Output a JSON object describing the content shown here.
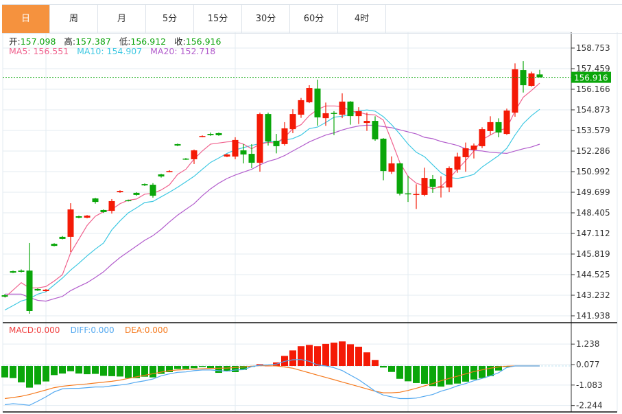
{
  "tabs": [
    {
      "label": "日",
      "active": true
    },
    {
      "label": "周",
      "active": false
    },
    {
      "label": "月",
      "active": false
    },
    {
      "label": "5分",
      "active": false
    },
    {
      "label": "15分",
      "active": false
    },
    {
      "label": "30分",
      "active": false
    },
    {
      "label": "60分",
      "active": false
    },
    {
      "label": "4时",
      "active": false
    }
  ],
  "ohlc_info": {
    "open_label": "开:",
    "open": "157.098",
    "high_label": "高:",
    "high": "157.387",
    "low_label": "低:",
    "low": "156.912",
    "close_label": "收:",
    "close": "156.916"
  },
  "ma_info": {
    "ma5": "MA5: 156.551",
    "ma10": "MA10: 154.907",
    "ma20": "MA20: 152.718"
  },
  "macd_info": {
    "macd": "MACD:0.000",
    "diff": "DIFF:0.000",
    "dea": "DEA:0.000"
  },
  "price_axis": {
    "ticks": [
      "158.753",
      "157.459",
      "156.166",
      "154.873",
      "153.579",
      "152.286",
      "150.992",
      "149.699",
      "148.405",
      "147.112",
      "145.819",
      "144.525",
      "143.232",
      "141.938"
    ],
    "current_price": "156.916"
  },
  "macd_axis": {
    "ticks": [
      "1.238",
      "0.077",
      "-1.083",
      "-2.244"
    ]
  },
  "colors": {
    "up": "#f41a06",
    "down": "#0aa60a",
    "ma5": "#f0628e",
    "ma10": "#3ec8e2",
    "ma20": "#b25ccc",
    "diff": "#52a8f0",
    "dea": "#f57a1e",
    "active_tab": "#f5923e",
    "grid": "#e3ebf2"
  },
  "chart_data": {
    "type": "candlestick",
    "ylim": [
      141.938,
      158.753
    ],
    "candles": [
      [
        143.23,
        143.3,
        143.1,
        143.14
      ],
      [
        144.74,
        144.78,
        144.62,
        144.65
      ],
      [
        144.78,
        144.85,
        144.66,
        144.7
      ],
      [
        144.78,
        146.51,
        142.07,
        142.24
      ],
      [
        143.62,
        143.66,
        143.5,
        143.53
      ],
      [
        143.49,
        143.62,
        143.46,
        143.58
      ],
      [
        146.46,
        146.5,
        146.3,
        146.33
      ],
      [
        146.9,
        146.95,
        146.74,
        146.77
      ],
      [
        146.9,
        149.01,
        145.95,
        148.62
      ],
      [
        148.19,
        148.23,
        148.06,
        148.1
      ],
      [
        148.1,
        148.27,
        148.06,
        148.23
      ],
      [
        149.31,
        149.35,
        148.98,
        149.09
      ],
      [
        148.58,
        148.62,
        148.4,
        148.45
      ],
      [
        148.53,
        149.27,
        148.36,
        149.14
      ],
      [
        149.7,
        149.82,
        149.66,
        149.78
      ],
      [
        149.2,
        149.24,
        149.12,
        149.16
      ],
      [
        149.66,
        149.7,
        149.48,
        149.53
      ],
      [
        150.21,
        150.25,
        150.09,
        150.13
      ],
      [
        150.17,
        150.27,
        149.36,
        149.48
      ],
      [
        150.82,
        150.86,
        150.62,
        150.69
      ],
      [
        150.99,
        151.08,
        150.95,
        151.03
      ],
      [
        152.72,
        152.76,
        152.59,
        152.63
      ],
      [
        151.81,
        151.85,
        151.73,
        151.77
      ],
      [
        151.77,
        152.38,
        151.47,
        152.33
      ],
      [
        153.19,
        153.27,
        153.15,
        153.23
      ],
      [
        153.36,
        153.45,
        153.24,
        153.28
      ],
      [
        153.41,
        153.45,
        153.24,
        153.28
      ],
      [
        151.94,
        152.11,
        151.9,
        152.07
      ],
      [
        151.94,
        153.15,
        151.77,
        152.98
      ],
      [
        152.33,
        152.72,
        151.51,
        152.07
      ],
      [
        152.11,
        152.72,
        151.21,
        151.55
      ],
      [
        151.55,
        154.7,
        150.99,
        154.61
      ],
      [
        154.61,
        154.7,
        152.63,
        152.89
      ],
      [
        152.93,
        153.36,
        152.14,
        152.59
      ],
      [
        152.72,
        154.1,
        152.63,
        153.71
      ],
      [
        153.66,
        154.91,
        153.41,
        154.61
      ],
      [
        154.57,
        155.62,
        154.37,
        155.48
      ],
      [
        155.35,
        156.42,
        155.3,
        156.25
      ],
      [
        156.21,
        156.77,
        153.88,
        154.4
      ],
      [
        154.35,
        155.33,
        153.87,
        154.66
      ],
      [
        154.68,
        154.79,
        153.29,
        154.64
      ],
      [
        154.57,
        155.91,
        154.35,
        155.39
      ],
      [
        155.39,
        155.42,
        153.94,
        154.48
      ],
      [
        154.48,
        155.04,
        153.98,
        154.79
      ],
      [
        154.05,
        154.7,
        153.55,
        154.18
      ],
      [
        154.18,
        154.47,
        152.93,
        153.02
      ],
      [
        153.06,
        153.1,
        150.45,
        151.03
      ],
      [
        150.99,
        151.95,
        150.85,
        151.51
      ],
      [
        151.51,
        151.55,
        149.5,
        149.61
      ],
      [
        149.63,
        150.74,
        149.09,
        149.59
      ],
      [
        149.55,
        150.2,
        148.65,
        149.59
      ],
      [
        149.53,
        151.24,
        149.45,
        150.6
      ],
      [
        150.52,
        150.78,
        149.66,
        150.04
      ],
      [
        150.02,
        150.7,
        149.37,
        150.06
      ],
      [
        150.0,
        151.32,
        149.7,
        151.21
      ],
      [
        151.12,
        152.18,
        150.92,
        151.94
      ],
      [
        151.9,
        152.82,
        150.99,
        152.46
      ],
      [
        152.37,
        152.76,
        151.82,
        152.63
      ],
      [
        152.59,
        153.78,
        152.47,
        153.66
      ],
      [
        153.54,
        154.47,
        153.32,
        154.1
      ],
      [
        154.1,
        154.34,
        153.15,
        153.45
      ],
      [
        153.36,
        154.95,
        153.3,
        154.83
      ],
      [
        154.7,
        157.79,
        154.44,
        157.42
      ],
      [
        157.37,
        157.93,
        155.96,
        156.42
      ],
      [
        156.38,
        157.27,
        156.33,
        157.16
      ],
      [
        157.098,
        157.387,
        156.912,
        156.916
      ]
    ],
    "ma5": [
      143.09,
      143.55,
      144.02,
      143.69,
      143.69,
      143.78,
      144.12,
      144.52,
      145.89,
      146.75,
      147.61,
      148.19,
      148.48,
      148.62,
      148.98,
      149.2,
      149.27,
      149.58,
      149.63,
      149.84,
      150.16,
      150.82,
      151.14,
      151.78,
      152.29,
      152.72,
      152.79,
      152.86,
      152.89,
      152.72,
      152.43,
      152.72,
      152.83,
      152.79,
      153.15,
      153.69,
      153.94,
      154.51,
      154.9,
      155.12,
      155.12,
      155.09,
      154.8,
      154.73,
      154.59,
      154.56,
      154.23,
      152.93,
      151.57,
      150.7,
      150.27,
      150.1,
      149.91,
      150.06,
      150.56,
      151.14,
      151.68,
      152.29,
      153.0,
      153.29,
      153.58,
      153.72,
      154.8,
      155.66,
      156.09,
      156.551
    ],
    "ma10": [
      142.3,
      142.58,
      142.87,
      143.01,
      143.3,
      143.45,
      143.88,
      144.31,
      144.81,
      145.24,
      145.7,
      146.13,
      146.51,
      147.33,
      147.9,
      148.4,
      148.72,
      149.05,
      149.12,
      149.41,
      149.7,
      150.01,
      150.35,
      150.7,
      151.14,
      151.57,
      151.85,
      152.14,
      152.36,
      152.5,
      152.64,
      152.75,
      152.86,
      152.89,
      152.97,
      153.07,
      153.29,
      153.69,
      153.79,
      154.08,
      154.41,
      154.47,
      154.58,
      154.8,
      154.87,
      154.79,
      154.44,
      153.94,
      153.36,
      152.72,
      152.21,
      151.93,
      151.42,
      150.92,
      150.63,
      150.56,
      150.67,
      150.82,
      151.28,
      151.64,
      152.0,
      152.46,
      153.29,
      154.01,
      154.51,
      154.907
    ],
    "ma20": [
      143.3,
      143.3,
      143.3,
      143.09,
      142.91,
      142.86,
      143.01,
      143.16,
      143.52,
      143.78,
      144.02,
      144.35,
      144.7,
      145.17,
      145.6,
      145.96,
      146.32,
      146.68,
      146.97,
      147.37,
      147.83,
      148.26,
      148.62,
      148.98,
      149.48,
      149.91,
      150.27,
      150.56,
      150.78,
      150.96,
      151.14,
      151.42,
      151.64,
      151.78,
      152.0,
      152.29,
      152.57,
      152.86,
      153.08,
      153.29,
      153.43,
      153.61,
      153.75,
      153.86,
      153.91,
      153.9,
      153.82,
      153.75,
      153.62,
      153.49,
      153.36,
      153.15,
      153.06,
      152.89,
      152.77,
      152.64,
      152.43,
      152.33,
      152.29,
      152.21,
      152.17,
      152.14,
      152.29,
      152.43,
      152.54,
      152.718
    ],
    "macd_hist": [
      -0.65,
      -0.69,
      -0.93,
      -1.23,
      -1.05,
      -0.88,
      -0.52,
      -0.43,
      -0.3,
      -0.43,
      -0.47,
      -0.45,
      -0.56,
      -0.58,
      -0.6,
      -0.69,
      -0.69,
      -0.61,
      -0.65,
      -0.45,
      -0.35,
      -0.17,
      -0.17,
      -0.13,
      -0.06,
      -0.12,
      -0.39,
      -0.31,
      -0.35,
      -0.22,
      -0.05,
      0.1,
      0.02,
      0.2,
      0.57,
      0.88,
      1.12,
      1.19,
      1.12,
      1.25,
      1.32,
      1.39,
      1.23,
      1.09,
      0.77,
      0.34,
      -0.09,
      -0.34,
      -0.73,
      -0.87,
      -0.97,
      -1.01,
      -1.14,
      -1.17,
      -1.06,
      -1.0,
      -0.89,
      -0.77,
      -0.69,
      -0.58,
      -0.26,
      -0.06,
      0.0,
      0.0,
      0.0,
      0.0
    ],
    "diff": [
      -2.2,
      -2.14,
      -2.18,
      -2.23,
      -2.0,
      -1.75,
      -1.47,
      -1.3,
      -1.27,
      -1.27,
      -1.23,
      -1.19,
      -1.19,
      -1.13,
      -1.08,
      -1.02,
      -0.92,
      -0.84,
      -0.74,
      -0.56,
      -0.45,
      -0.36,
      -0.34,
      -0.27,
      -0.23,
      -0.23,
      -0.27,
      -0.3,
      -0.23,
      -0.21,
      -0.04,
      0.04,
      0.06,
      0.1,
      0.26,
      0.35,
      0.36,
      0.26,
      0.06,
      0.0,
      -0.1,
      -0.26,
      -0.52,
      -0.78,
      -1.1,
      -1.43,
      -1.65,
      -1.75,
      -1.85,
      -1.85,
      -1.82,
      -1.72,
      -1.62,
      -1.43,
      -1.3,
      -1.13,
      -1.0,
      -0.84,
      -0.71,
      -0.56,
      -0.39,
      -0.09,
      0.0,
      0.0,
      0.0,
      0.0
    ],
    "dea": [
      -1.85,
      -1.79,
      -1.72,
      -1.62,
      -1.49,
      -1.36,
      -1.23,
      -1.15,
      -1.1,
      -1.06,
      -1.02,
      -0.97,
      -0.92,
      -0.87,
      -0.8,
      -0.71,
      -0.62,
      -0.53,
      -0.44,
      -0.35,
      -0.27,
      -0.23,
      -0.21,
      -0.18,
      -0.16,
      -0.14,
      -0.13,
      -0.12,
      -0.09,
      -0.06,
      -0.01,
      0.01,
      0.01,
      0.0,
      -0.06,
      -0.13,
      -0.26,
      -0.39,
      -0.52,
      -0.65,
      -0.78,
      -0.91,
      -1.04,
      -1.17,
      -1.3,
      -1.43,
      -1.52,
      -1.52,
      -1.49,
      -1.39,
      -1.27,
      -1.13,
      -1.0,
      -0.84,
      -0.71,
      -0.58,
      -0.45,
      -0.32,
      -0.22,
      -0.13,
      -0.06,
      -0.01,
      0.0,
      0.0,
      0.0,
      0.0
    ]
  }
}
